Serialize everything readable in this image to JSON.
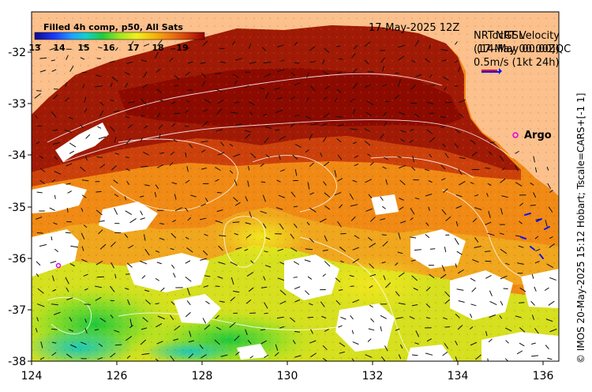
{
  "map": {
    "title_left": "Filled 4h comp, p50, All Sats",
    "date_label": "17-May-2025 12Z",
    "overlay_label_1": "NRTocGSL",
    "overlay_label_2": "NRT Velocity",
    "overlay_label_3": "(17-May 00:00Z)",
    "overlay_label_4": "(14-May 00:00)QC",
    "scale_label": "0.5m/s (1kt 24h)",
    "argo_label": "Argo",
    "side_credit": "© IMOS 20-May-2025 15:12 Hobart; Tscale=CARS+[-1 1]"
  },
  "colorbar": {
    "ticks": [
      "13",
      "14",
      "15",
      "16",
      "17",
      "18",
      "19"
    ],
    "range": [
      13,
      19.7
    ]
  },
  "axes": {
    "lon_labels": [
      "124",
      "126",
      "128",
      "130",
      "132",
      "134",
      "136"
    ],
    "lat_labels": [
      "-32",
      "-33",
      "-34",
      "-35",
      "-36",
      "-37",
      "-38"
    ]
  },
  "colors": {
    "land": "#fcc08c",
    "vector": "#111111",
    "argo": "#e000e0",
    "contour": "#ffffff"
  }
}
